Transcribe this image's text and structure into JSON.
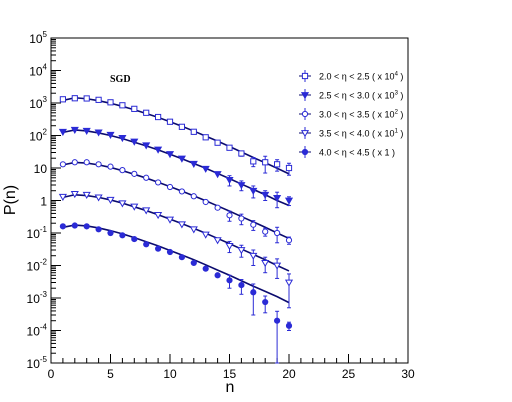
{
  "chart_data": {
    "type": "scatter",
    "title": "",
    "annotation": "SGD",
    "xlabel": "n",
    "ylabel": "P(n)",
    "xlim": [
      0,
      30
    ],
    "ylim": [
      1e-05,
      100000.0
    ],
    "y_scale": "log",
    "x_ticks": [
      "0",
      "5",
      "10",
      "15",
      "20",
      "25",
      "30"
    ],
    "y_ticks": [
      {
        "base": "10",
        "exp": "-5",
        "value": 1e-05
      },
      {
        "base": "10",
        "exp": "-4",
        "value": 0.0001
      },
      {
        "base": "10",
        "exp": "-3",
        "value": 0.001
      },
      {
        "base": "10",
        "exp": "-2",
        "value": 0.01
      },
      {
        "base": "10",
        "exp": "-1",
        "value": 0.1
      },
      {
        "base": "1",
        "exp": "",
        "value": 1
      },
      {
        "base": "10",
        "exp": "",
        "value": 10
      },
      {
        "base": "10",
        "exp": "2",
        "value": 100.0
      },
      {
        "base": "10",
        "exp": "3",
        "value": 1000.0
      },
      {
        "base": "10",
        "exp": "4",
        "value": 10000.0
      },
      {
        "base": "10",
        "exp": "5",
        "value": 100000.0
      }
    ],
    "legend_position": "top-right",
    "grid": false,
    "colors": {
      "markers": "#2b2bd6",
      "fit_line": "#0b0b6e"
    },
    "series": [
      {
        "name": "2.0 < η < 2.5 ( x 10⁴ )",
        "legend_main": "2.0 < η < 2.5 ( x 10",
        "legend_sup": "4",
        "legend_tail": " )",
        "marker": "open-square",
        "x": [
          1,
          2,
          3,
          4,
          5,
          6,
          7,
          8,
          9,
          10,
          11,
          12,
          13,
          14,
          15,
          16,
          17,
          18,
          19,
          20
        ],
        "y": [
          1300,
          1400,
          1380,
          1250,
          1050,
          850,
          660,
          500,
          370,
          265,
          185,
          130,
          88,
          60,
          42,
          28,
          16,
          15,
          13,
          10
        ],
        "err": [
          0,
          0,
          0,
          0,
          0,
          0,
          0,
          0,
          0,
          0,
          0,
          0,
          0,
          0,
          5,
          5,
          5,
          8,
          5,
          4
        ],
        "fit": [
          1200,
          1450,
          1350,
          1180,
          980,
          790,
          620,
          475,
          360,
          265,
          192,
          137,
          96,
          67,
          46,
          31,
          21,
          14.5,
          9.8,
          6.6
        ]
      },
      {
        "name": "2.5 < η < 3.0 ( x 10³ )",
        "legend_main": "2.5 < η < 3.0 ( x 10",
        "legend_sup": "3",
        "legend_tail": " )",
        "marker": "filled-triangle-down",
        "x": [
          1,
          2,
          3,
          4,
          5,
          6,
          7,
          8,
          9,
          10,
          11,
          12,
          13,
          14,
          15,
          16,
          17,
          18,
          19,
          20
        ],
        "y": [
          130,
          150,
          140,
          125,
          105,
          84,
          65,
          50,
          37,
          27,
          19.5,
          13.5,
          9.5,
          6.5,
          4.3,
          3.0,
          2.0,
          1.5,
          1.2,
          1.0
        ],
        "err": [
          0,
          0,
          0,
          0,
          0,
          0,
          0,
          0,
          0,
          0,
          0,
          0,
          0,
          0,
          1.5,
          1.0,
          0.8,
          0.5,
          0.6,
          0.3
        ],
        "fit": [
          125,
          148,
          138,
          120,
          100,
          80,
          62,
          48,
          36,
          26.5,
          19.3,
          13.8,
          9.8,
          6.8,
          4.7,
          3.2,
          2.2,
          1.5,
          1.0,
          0.7
        ]
      },
      {
        "name": "3.0 < η < 3.5 ( x 10² )",
        "legend_main": "3.0 < η < 3.5 ( x 10",
        "legend_sup": "2",
        "legend_tail": " )",
        "marker": "open-circle",
        "x": [
          1,
          2,
          3,
          4,
          5,
          6,
          7,
          8,
          9,
          10,
          11,
          12,
          13,
          14,
          15,
          16,
          17,
          18,
          19,
          20
        ],
        "y": [
          13,
          15,
          15,
          13,
          11,
          8.6,
          6.6,
          5.0,
          3.6,
          2.6,
          1.9,
          1.35,
          0.9,
          0.6,
          0.35,
          0.28,
          0.18,
          0.11,
          0.1,
          0.06
        ],
        "err": [
          0,
          0,
          0,
          0,
          0,
          0,
          0,
          0,
          0,
          0,
          0,
          0,
          0,
          0,
          0.12,
          0.1,
          0.06,
          0.03,
          0.05,
          0.015
        ],
        "fit": [
          12.5,
          14.8,
          14.2,
          12.5,
          10.4,
          8.3,
          6.4,
          4.9,
          3.65,
          2.68,
          1.94,
          1.39,
          0.98,
          0.68,
          0.47,
          0.32,
          0.22,
          0.15,
          0.1,
          0.068
        ]
      },
      {
        "name": "3.5 < η < 4.0 ( x 10¹ )",
        "legend_main": "3.5 < η < 4.0 ( x 10",
        "legend_sup": "1",
        "legend_tail": " )",
        "marker": "open-triangle-down",
        "x": [
          1,
          2,
          3,
          4,
          5,
          6,
          7,
          8,
          9,
          10,
          11,
          12,
          13,
          14,
          15,
          16,
          17,
          18,
          19,
          20
        ],
        "y": [
          1.3,
          1.6,
          1.5,
          1.25,
          1.05,
          0.82,
          0.65,
          0.5,
          0.36,
          0.26,
          0.185,
          0.13,
          0.09,
          0.06,
          0.04,
          0.03,
          0.02,
          0.012,
          0.01,
          0.003
        ],
        "err": [
          0,
          0,
          0,
          0,
          0,
          0,
          0,
          0,
          0,
          0,
          0,
          0,
          0,
          0,
          0.015,
          0.012,
          0.01,
          0.006,
          0.006,
          0.0025
        ],
        "fit": [
          1.25,
          1.5,
          1.42,
          1.25,
          1.04,
          0.83,
          0.64,
          0.49,
          0.365,
          0.268,
          0.194,
          0.139,
          0.098,
          0.068,
          0.047,
          0.032,
          0.022,
          0.015,
          0.01,
          0.0068
        ]
      },
      {
        "name": "4.0 < η < 4.5 ( x 1 )",
        "legend_main": "4.0 < η < 4.5 ( x 1 )",
        "legend_sup": "",
        "legend_tail": "",
        "marker": "filled-circle",
        "x": [
          1,
          2,
          3,
          4,
          5,
          6,
          7,
          8,
          9,
          10,
          11,
          12,
          13,
          14,
          15,
          16,
          17,
          18,
          19,
          20
        ],
        "y": [
          0.16,
          0.17,
          0.16,
          0.13,
          0.1,
          0.085,
          0.065,
          0.045,
          0.033,
          0.026,
          0.018,
          0.012,
          0.008,
          0.005,
          0.0035,
          0.0025,
          0.0015,
          0.00075,
          0.0002,
          0.00014
        ],
        "err": [
          0,
          0,
          0,
          0,
          0,
          0,
          0,
          0,
          0,
          0,
          0,
          0,
          0,
          0,
          0.0015,
          0.0012,
          0.0012,
          0.0004,
          0.00019,
          4e-05
        ],
        "fit": [
          0.15,
          0.175,
          0.165,
          0.143,
          0.118,
          0.094,
          0.072,
          0.054,
          0.04,
          0.029,
          0.021,
          0.015,
          0.0105,
          0.0072,
          0.005,
          0.0034,
          0.0023,
          0.0016,
          0.0011,
          0.00072
        ]
      }
    ]
  }
}
